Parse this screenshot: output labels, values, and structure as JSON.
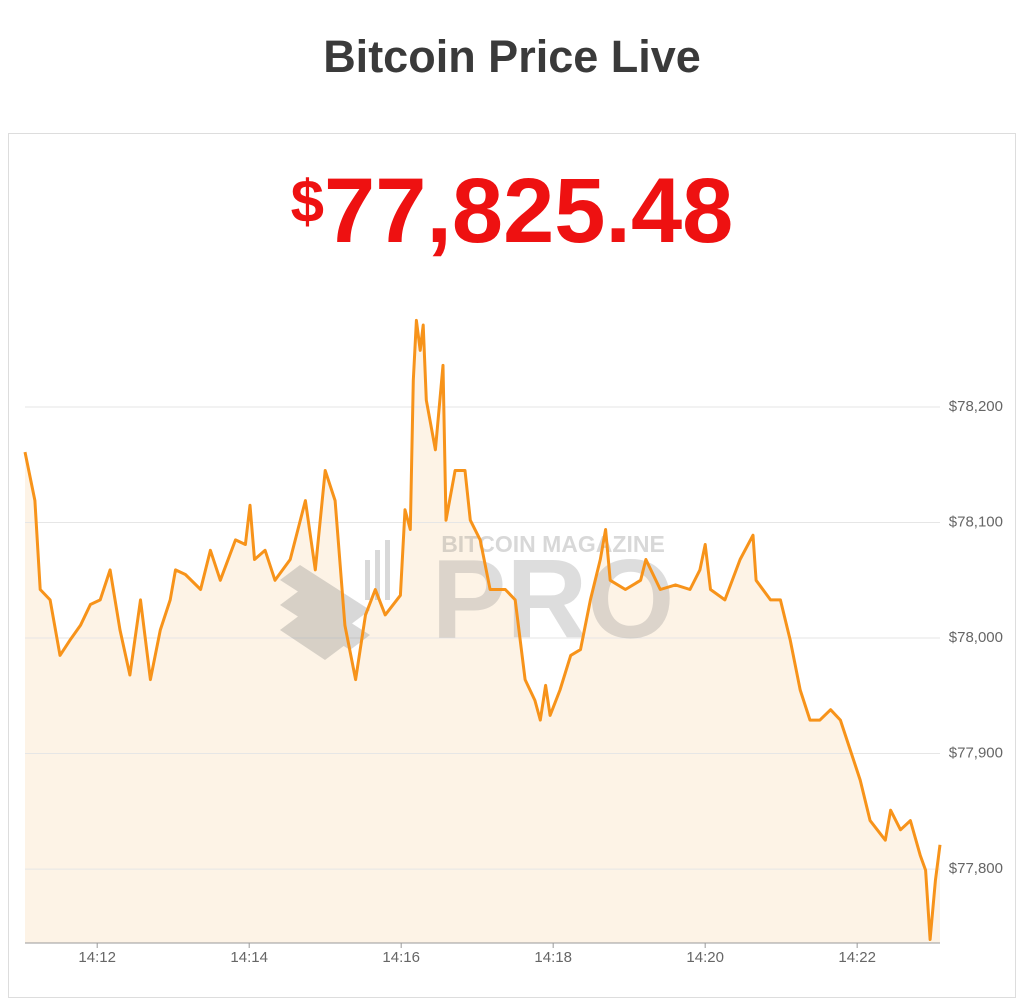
{
  "chart_data": {
    "type": "line",
    "title": "Bitcoin Price Live",
    "headline": {
      "currency": "$",
      "amount": "77,825.48"
    },
    "watermark": {
      "top": "BITCOIN MAGAZINE",
      "main": "PRO"
    },
    "color": "#f7931a",
    "area_color": "#fdf3e6",
    "grid": true,
    "x": [
      11.05,
      11.18,
      11.25,
      11.38,
      11.51,
      11.64,
      11.78,
      11.91,
      12.04,
      12.17,
      12.3,
      12.43,
      12.57,
      12.7,
      12.83,
      12.96,
      13.03,
      13.16,
      13.36,
      13.49,
      13.62,
      13.82,
      13.95,
      14.01,
      14.07,
      14.21,
      14.34,
      14.54,
      14.74,
      14.87,
      15.0,
      15.13,
      15.26,
      15.4,
      15.53,
      15.66,
      15.79,
      15.99,
      16.05,
      16.12,
      16.16,
      16.2,
      16.25,
      16.29,
      16.33,
      16.45,
      16.55,
      16.59,
      16.71,
      16.84,
      16.91,
      17.04,
      17.17,
      17.37,
      17.5,
      17.63,
      17.76,
      17.83,
      17.9,
      17.96,
      18.09,
      18.23,
      18.36,
      18.49,
      18.62,
      18.69,
      18.75,
      18.95,
      19.15,
      19.22,
      19.41,
      19.61,
      19.8,
      19.93,
      20.0,
      20.07,
      20.26,
      20.46,
      20.63,
      20.67,
      20.86,
      20.99,
      21.12,
      21.25,
      21.38,
      21.51,
      21.65,
      21.78,
      21.91,
      22.04,
      22.17,
      22.37,
      22.44,
      22.57,
      22.7,
      22.83,
      22.9,
      22.96,
      23.03,
      23.09
    ],
    "values": [
      78161,
      78119,
      78042,
      78033,
      77985,
      77998,
      78011,
      78029,
      78033,
      78059,
      78007,
      77968,
      78033,
      77964,
      78007,
      78033,
      78059,
      78055,
      78042,
      78076,
      78050,
      78085,
      78081,
      78115,
      78068,
      78076,
      78050,
      78068,
      78119,
      78059,
      78145,
      78119,
      78011,
      77964,
      78020,
      78042,
      78020,
      78037,
      78111,
      78094,
      78223,
      78275,
      78249,
      78271,
      78206,
      78163,
      78236,
      78102,
      78145,
      78145,
      78102,
      78085,
      78042,
      78042,
      78033,
      77964,
      77946,
      77929,
      77959,
      77933,
      77955,
      77985,
      77990,
      78033,
      78068,
      78094,
      78050,
      78042,
      78050,
      78068,
      78042,
      78046,
      78042,
      78059,
      78081,
      78042,
      78033,
      78068,
      78089,
      78050,
      78033,
      78033,
      77998,
      77955,
      77929,
      77929,
      77938,
      77929,
      77903,
      77877,
      77842,
      77825,
      77851,
      77834,
      77842,
      77812,
      77799,
      77739,
      77790,
      77821
    ],
    "xlim": [
      11.05,
      23.09
    ],
    "xticks": [
      {
        "value": 12,
        "label": "14:12"
      },
      {
        "value": 14,
        "label": "14:14"
      },
      {
        "value": 16,
        "label": "14:16"
      },
      {
        "value": 18,
        "label": "14:18"
      },
      {
        "value": 20,
        "label": "14:20"
      },
      {
        "value": 22,
        "label": "14:22"
      }
    ],
    "ylim": [
      77736,
      78300
    ],
    "yticks": [
      {
        "value": 77800,
        "label": "$77,800"
      },
      {
        "value": 77900,
        "label": "$77,900"
      },
      {
        "value": 78000,
        "label": "$78,000"
      },
      {
        "value": 78100,
        "label": "$78,100"
      },
      {
        "value": 78200,
        "label": "$78,200"
      }
    ]
  }
}
